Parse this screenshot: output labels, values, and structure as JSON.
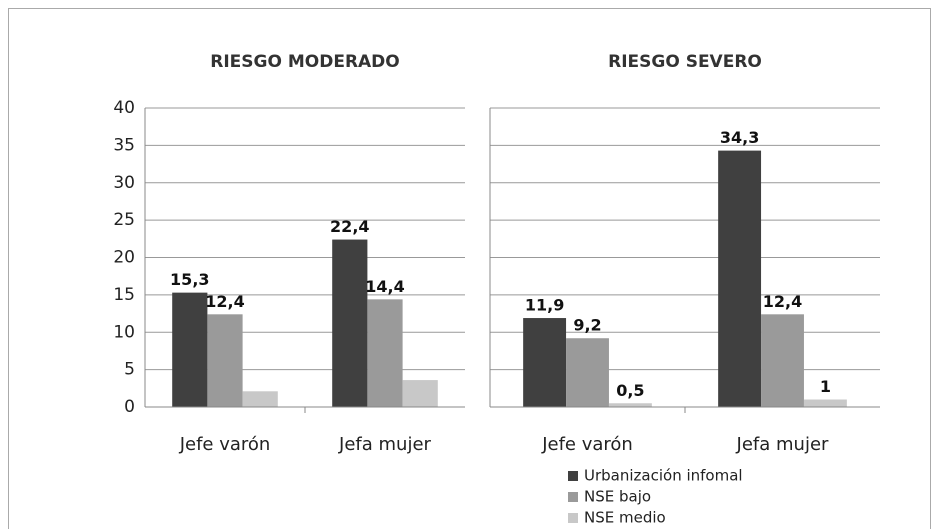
{
  "chart_data": [
    {
      "type": "bar",
      "title": "RIESGO MODERADO",
      "categories": [
        "Jefe varón",
        "Jefa mujer"
      ],
      "series": [
        {
          "name": "Urbanización infomal",
          "color": "#404040",
          "values": [
            15.3,
            22.4
          ],
          "value_labels": [
            "15,3",
            "22,4"
          ]
        },
        {
          "name": "NSE bajo",
          "color": "#9a9a9a",
          "values": [
            12.4,
            14.4
          ],
          "value_labels": [
            "12,4",
            "14,4"
          ]
        },
        {
          "name": "NSE medio",
          "color": "#c8c8c8",
          "values": [
            2.1,
            3.6
          ],
          "value_labels": [
            null,
            null
          ]
        }
      ],
      "ylim": [
        0,
        40
      ],
      "yticks": [
        0,
        5,
        10,
        15,
        20,
        25,
        30,
        35,
        40
      ],
      "grid": true,
      "show_tick_labels": true
    },
    {
      "type": "bar",
      "title": "RIESGO SEVERO",
      "categories": [
        "Jefe varón",
        "Jefa mujer"
      ],
      "series": [
        {
          "name": "Urbanización infomal",
          "color": "#404040",
          "values": [
            11.9,
            34.3
          ],
          "value_labels": [
            "11,9",
            "34,3"
          ]
        },
        {
          "name": "NSE bajo",
          "color": "#9a9a9a",
          "values": [
            9.2,
            12.4
          ],
          "value_labels": [
            "9,2",
            "12,4"
          ]
        },
        {
          "name": "NSE medio",
          "color": "#c8c8c8",
          "values": [
            0.5,
            1
          ],
          "value_labels": [
            "0,5",
            "1"
          ]
        }
      ],
      "ylim": [
        0,
        40
      ],
      "yticks": [
        0,
        5,
        10,
        15,
        20,
        25,
        30,
        35,
        40
      ],
      "grid": true,
      "show_tick_labels": false,
      "legend": "bottom"
    }
  ]
}
